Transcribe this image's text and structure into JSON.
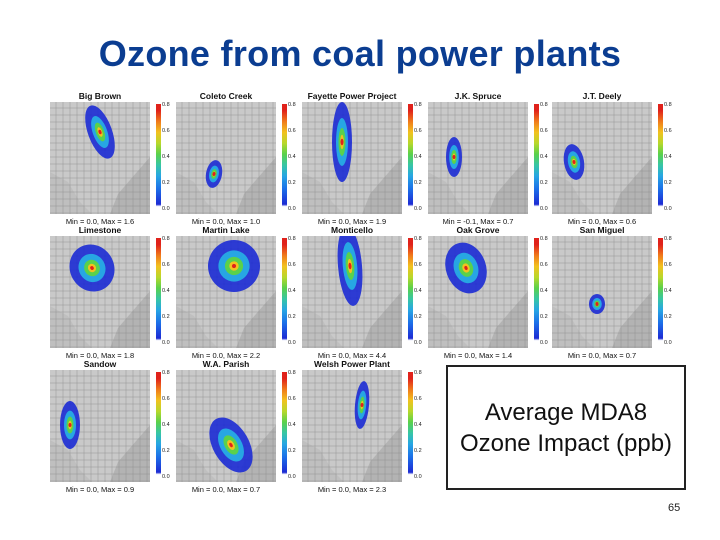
{
  "slide": {
    "title": "Ozone from coal power plants",
    "caption": "Average MDA8 Ozone Impact (ppb)",
    "page_number": "65"
  },
  "colorbar": {
    "ticks": [
      "0.8",
      "0.6",
      "0.4",
      "0.2",
      "0.0"
    ],
    "colors": [
      "#1c2bd4",
      "#27a6e3",
      "#5ad14b",
      "#f2c21f",
      "#e0221b"
    ]
  },
  "panels": [
    {
      "name": "Big Brown",
      "stats": "Min = 0.0, Max = 1.6"
    },
    {
      "name": "Coleto Creek",
      "stats": "Min = 0.0, Max = 1.0"
    },
    {
      "name": "Fayette Power Project",
      "stats": "Min = 0.0, Max = 1.9"
    },
    {
      "name": "J.K. Spruce",
      "stats": "Min = -0.1, Max = 0.7"
    },
    {
      "name": "J.T. Deely",
      "stats": "Min = 0.0, Max = 0.6"
    },
    {
      "name": "Limestone",
      "stats": "Min = 0.0, Max = 1.8"
    },
    {
      "name": "Martin Lake",
      "stats": "Min = 0.0, Max = 2.2"
    },
    {
      "name": "Monticello",
      "stats": "Min = 0.0, Max = 4.4"
    },
    {
      "name": "Oak Grove",
      "stats": "Min = 0.0, Max = 1.4"
    },
    {
      "name": "San Miguel",
      "stats": "Min = 0.0, Max = 0.7"
    },
    {
      "name": "Sandow",
      "stats": "Min = 0.0, Max = 0.9"
    },
    {
      "name": "W.A. Parish",
      "stats": "Min = 0.0, Max = 0.7"
    },
    {
      "name": "Welsh Power Plant",
      "stats": "Min = 0.0, Max = 2.3"
    }
  ]
}
